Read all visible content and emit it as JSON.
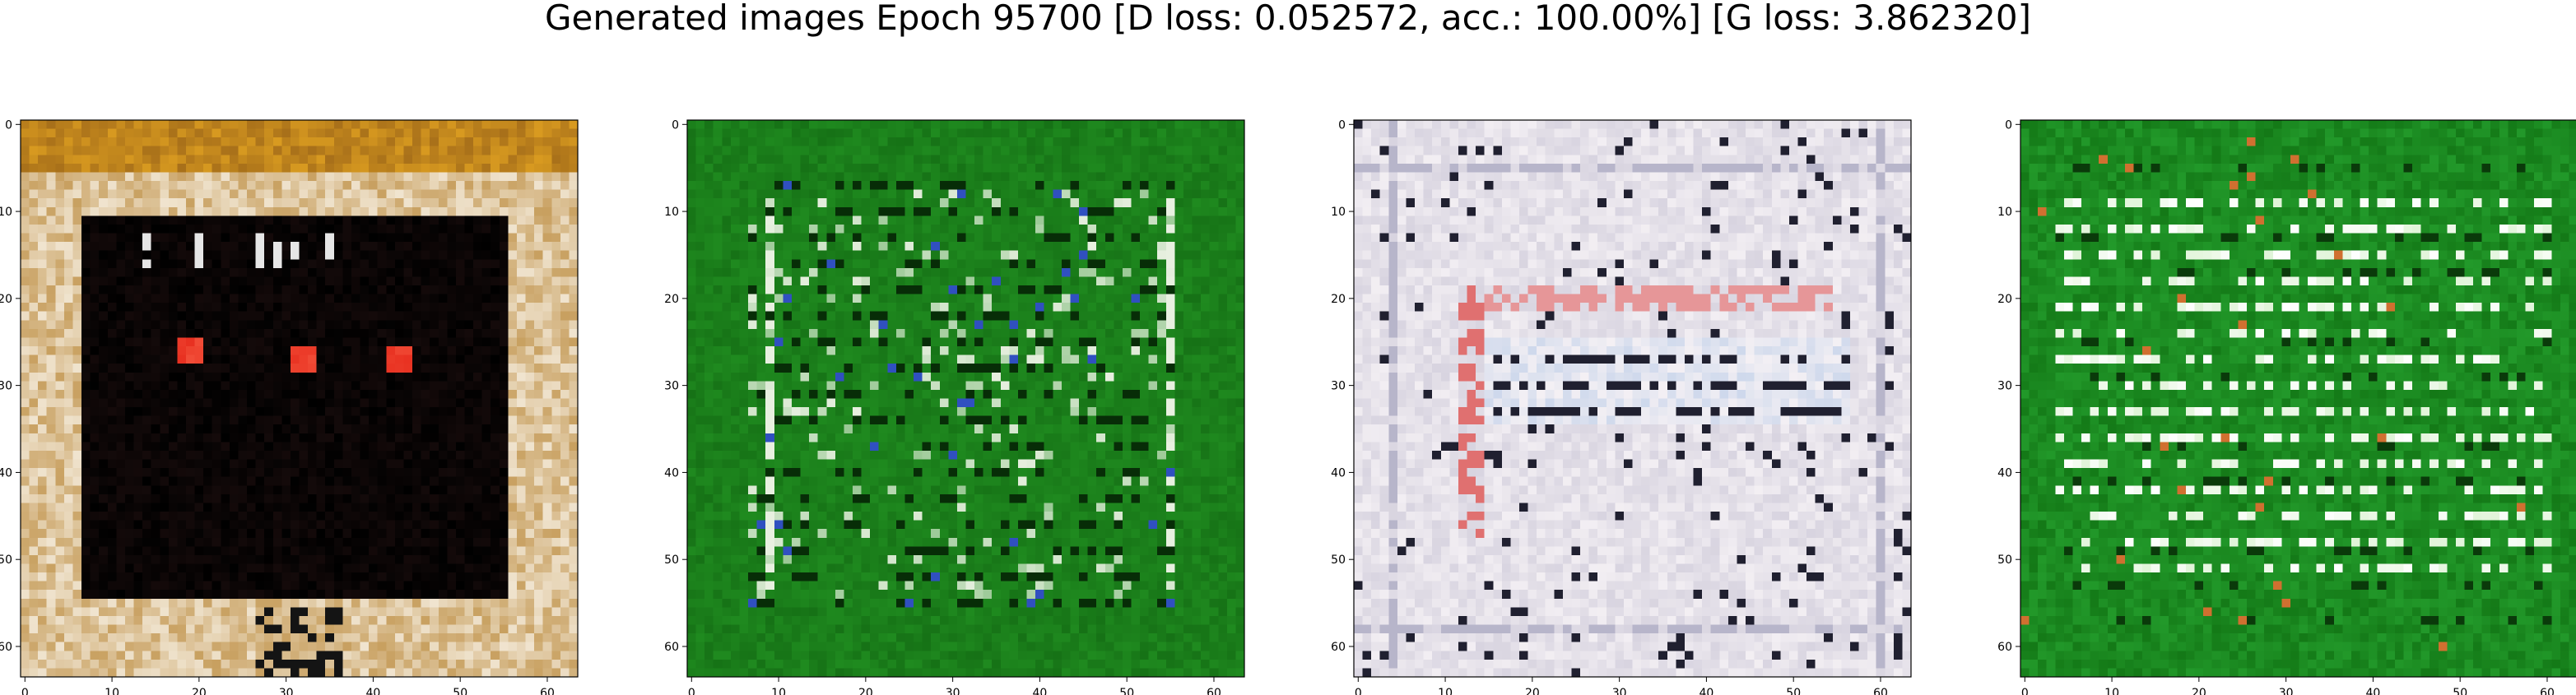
{
  "figure": {
    "title": "Generated images Epoch 95700 [D loss: 0.052572, acc.: 100.00%] [G loss: 3.862320]"
  },
  "chart_data": [
    {
      "type": "heatmap",
      "description_colors": {
        "base": "#c8a060",
        "frame_top": "#d89a20",
        "inner": "#000000",
        "accent": "#e83020"
      },
      "xlim": [
        0,
        63
      ],
      "ylim": [
        63,
        0
      ],
      "xticks": [
        0,
        10,
        20,
        30,
        40,
        50,
        60
      ],
      "yticks": [
        0,
        10,
        20,
        30,
        40,
        50,
        60
      ],
      "grid": false
    },
    {
      "type": "heatmap",
      "description_colors": {
        "base": "#1f8a1f",
        "dark": "#0d5a0d",
        "light": "#e8f0e0",
        "accent": "#3050c0"
      },
      "xlim": [
        0,
        63
      ],
      "ylim": [
        63,
        0
      ],
      "xticks": [
        0,
        10,
        20,
        30,
        40,
        50,
        60
      ],
      "yticks": [
        0,
        10,
        20,
        30,
        40,
        50,
        60
      ],
      "grid": false
    },
    {
      "type": "heatmap",
      "description_colors": {
        "base": "#d8d4e0",
        "dark": "#202030",
        "light": "#f4f0f4",
        "accent": "#e07070"
      },
      "xlim": [
        0,
        63
      ],
      "ylim": [
        63,
        0
      ],
      "xticks": [
        0,
        10,
        20,
        30,
        40,
        50,
        60
      ],
      "yticks": [
        0,
        10,
        20,
        30,
        40,
        50,
        60
      ],
      "grid": false
    },
    {
      "type": "heatmap",
      "description_colors": {
        "base": "#22992a",
        "dark": "#0a3a0a",
        "light": "#e0f4d8",
        "accent": "#d07030"
      },
      "xlim": [
        0,
        63
      ],
      "ylim": [
        63,
        0
      ],
      "xticks": [
        0,
        10,
        20,
        30,
        40,
        50,
        60
      ],
      "yticks": [
        0,
        10,
        20,
        30,
        40,
        50,
        60
      ],
      "grid": false
    }
  ]
}
